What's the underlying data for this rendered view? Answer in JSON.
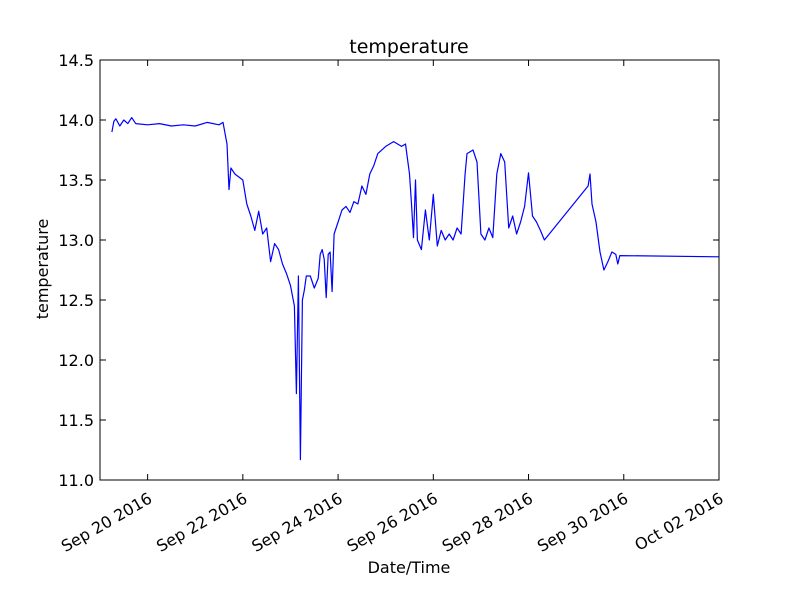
{
  "chart_data": {
    "type": "line",
    "title": "temperature",
    "xlabel": "Date/Time",
    "ylabel": "temperature",
    "ylim": [
      11.0,
      14.5
    ],
    "xlim": [
      "2016-09-19T00:00",
      "2016-10-02T00:00"
    ],
    "grid": false,
    "legend": "none",
    "y_ticks": [
      "11.0",
      "11.5",
      "12.0",
      "12.5",
      "13.0",
      "13.5",
      "14.0",
      "14.5"
    ],
    "x_ticks": [
      {
        "date": "2016-09-20",
        "label": "Sep 20 2016"
      },
      {
        "date": "2016-09-22",
        "label": "Sep 22 2016"
      },
      {
        "date": "2016-09-24",
        "label": "Sep 24 2016"
      },
      {
        "date": "2016-09-26",
        "label": "Sep 26 2016"
      },
      {
        "date": "2016-09-28",
        "label": "Sep 28 2016"
      },
      {
        "date": "2016-09-30",
        "label": "Sep 30 2016"
      },
      {
        "date": "2016-10-02",
        "label": "Oct 02 2016"
      }
    ],
    "series": [
      {
        "color": "#0000ff",
        "points": [
          [
            "2016-09-19T06:00",
            13.9
          ],
          [
            "2016-09-19T07:00",
            13.99
          ],
          [
            "2016-09-19T08:00",
            14.01
          ],
          [
            "2016-09-19T10:00",
            13.95
          ],
          [
            "2016-09-19T12:00",
            14.0
          ],
          [
            "2016-09-19T14:00",
            13.97
          ],
          [
            "2016-09-19T16:00",
            14.02
          ],
          [
            "2016-09-19T18:00",
            13.97
          ],
          [
            "2016-09-20T00:00",
            13.96
          ],
          [
            "2016-09-20T06:00",
            13.97
          ],
          [
            "2016-09-20T12:00",
            13.95
          ],
          [
            "2016-09-20T18:00",
            13.96
          ],
          [
            "2016-09-21T00:00",
            13.95
          ],
          [
            "2016-09-21T06:00",
            13.98
          ],
          [
            "2016-09-21T12:00",
            13.96
          ],
          [
            "2016-09-21T14:00",
            13.98
          ],
          [
            "2016-09-21T16:00",
            13.8
          ],
          [
            "2016-09-21T17:00",
            13.42
          ],
          [
            "2016-09-21T18:00",
            13.6
          ],
          [
            "2016-09-21T20:00",
            13.55
          ],
          [
            "2016-09-22T00:00",
            13.5
          ],
          [
            "2016-09-22T02:00",
            13.3
          ],
          [
            "2016-09-22T04:00",
            13.2
          ],
          [
            "2016-09-22T06:00",
            13.08
          ],
          [
            "2016-09-22T08:00",
            13.24
          ],
          [
            "2016-09-22T10:00",
            13.05
          ],
          [
            "2016-09-22T12:00",
            13.1
          ],
          [
            "2016-09-22T14:00",
            12.82
          ],
          [
            "2016-09-22T16:00",
            12.97
          ],
          [
            "2016-09-22T18:00",
            12.92
          ],
          [
            "2016-09-22T20:00",
            12.8
          ],
          [
            "2016-09-22T22:00",
            12.72
          ],
          [
            "2016-09-23T00:00",
            12.62
          ],
          [
            "2016-09-23T02:00",
            12.45
          ],
          [
            "2016-09-23T03:00",
            11.72
          ],
          [
            "2016-09-23T04:00",
            12.7
          ],
          [
            "2016-09-23T05:00",
            11.17
          ],
          [
            "2016-09-23T06:00",
            12.5
          ],
          [
            "2016-09-23T07:00",
            12.58
          ],
          [
            "2016-09-23T08:00",
            12.7
          ],
          [
            "2016-09-23T10:00",
            12.7
          ],
          [
            "2016-09-23T12:00",
            12.6
          ],
          [
            "2016-09-23T14:00",
            12.68
          ],
          [
            "2016-09-23T15:00",
            12.88
          ],
          [
            "2016-09-23T16:00",
            12.92
          ],
          [
            "2016-09-23T17:00",
            12.84
          ],
          [
            "2016-09-23T18:00",
            12.52
          ],
          [
            "2016-09-23T19:00",
            12.88
          ],
          [
            "2016-09-23T20:00",
            12.9
          ],
          [
            "2016-09-23T21:00",
            12.57
          ],
          [
            "2016-09-23T22:00",
            13.05
          ],
          [
            "2016-09-24T00:00",
            13.15
          ],
          [
            "2016-09-24T02:00",
            13.25
          ],
          [
            "2016-09-24T04:00",
            13.28
          ],
          [
            "2016-09-24T06:00",
            13.23
          ],
          [
            "2016-09-24T08:00",
            13.32
          ],
          [
            "2016-09-24T10:00",
            13.3
          ],
          [
            "2016-09-24T12:00",
            13.45
          ],
          [
            "2016-09-24T14:00",
            13.38
          ],
          [
            "2016-09-24T16:00",
            13.55
          ],
          [
            "2016-09-24T18:00",
            13.62
          ],
          [
            "2016-09-24T20:00",
            13.72
          ],
          [
            "2016-09-25T00:00",
            13.78
          ],
          [
            "2016-09-25T04:00",
            13.82
          ],
          [
            "2016-09-25T08:00",
            13.78
          ],
          [
            "2016-09-25T10:00",
            13.8
          ],
          [
            "2016-09-25T12:00",
            13.55
          ],
          [
            "2016-09-25T13:00",
            13.3
          ],
          [
            "2016-09-25T14:00",
            13.02
          ],
          [
            "2016-09-25T15:00",
            13.5
          ],
          [
            "2016-09-25T16:00",
            13.0
          ],
          [
            "2016-09-25T18:00",
            12.92
          ],
          [
            "2016-09-25T20:00",
            13.25
          ],
          [
            "2016-09-25T22:00",
            13.0
          ],
          [
            "2016-09-26T00:00",
            13.38
          ],
          [
            "2016-09-26T02:00",
            12.95
          ],
          [
            "2016-09-26T04:00",
            13.08
          ],
          [
            "2016-09-26T06:00",
            13.0
          ],
          [
            "2016-09-26T08:00",
            13.05
          ],
          [
            "2016-09-26T10:00",
            13.0
          ],
          [
            "2016-09-26T12:00",
            13.1
          ],
          [
            "2016-09-26T14:00",
            13.05
          ],
          [
            "2016-09-26T16:00",
            13.55
          ],
          [
            "2016-09-26T17:00",
            13.72
          ],
          [
            "2016-09-26T20:00",
            13.75
          ],
          [
            "2016-09-26T22:00",
            13.65
          ],
          [
            "2016-09-27T00:00",
            13.05
          ],
          [
            "2016-09-27T02:00",
            13.0
          ],
          [
            "2016-09-27T04:00",
            13.1
          ],
          [
            "2016-09-27T06:00",
            13.02
          ],
          [
            "2016-09-27T08:00",
            13.55
          ],
          [
            "2016-09-27T10:00",
            13.72
          ],
          [
            "2016-09-27T12:00",
            13.65
          ],
          [
            "2016-09-27T14:00",
            13.1
          ],
          [
            "2016-09-27T16:00",
            13.2
          ],
          [
            "2016-09-27T18:00",
            13.05
          ],
          [
            "2016-09-27T20:00",
            13.15
          ],
          [
            "2016-09-27T22:00",
            13.28
          ],
          [
            "2016-09-28T00:00",
            13.56
          ],
          [
            "2016-09-28T02:00",
            13.2
          ],
          [
            "2016-09-28T04:00",
            13.15
          ],
          [
            "2016-09-28T06:00",
            13.08
          ],
          [
            "2016-09-28T08:00",
            13.0
          ],
          [
            "2016-09-29T06:00",
            13.45
          ],
          [
            "2016-09-29T07:00",
            13.55
          ],
          [
            "2016-09-29T08:00",
            13.3
          ],
          [
            "2016-09-29T10:00",
            13.15
          ],
          [
            "2016-09-29T12:00",
            12.9
          ],
          [
            "2016-09-29T14:00",
            12.75
          ],
          [
            "2016-09-29T16:00",
            12.82
          ],
          [
            "2016-09-29T18:00",
            12.9
          ],
          [
            "2016-09-29T20:00",
            12.88
          ],
          [
            "2016-09-29T21:00",
            12.8
          ],
          [
            "2016-09-29T22:00",
            12.87
          ],
          [
            "2016-10-02T00:00",
            12.86
          ]
        ]
      }
    ]
  }
}
